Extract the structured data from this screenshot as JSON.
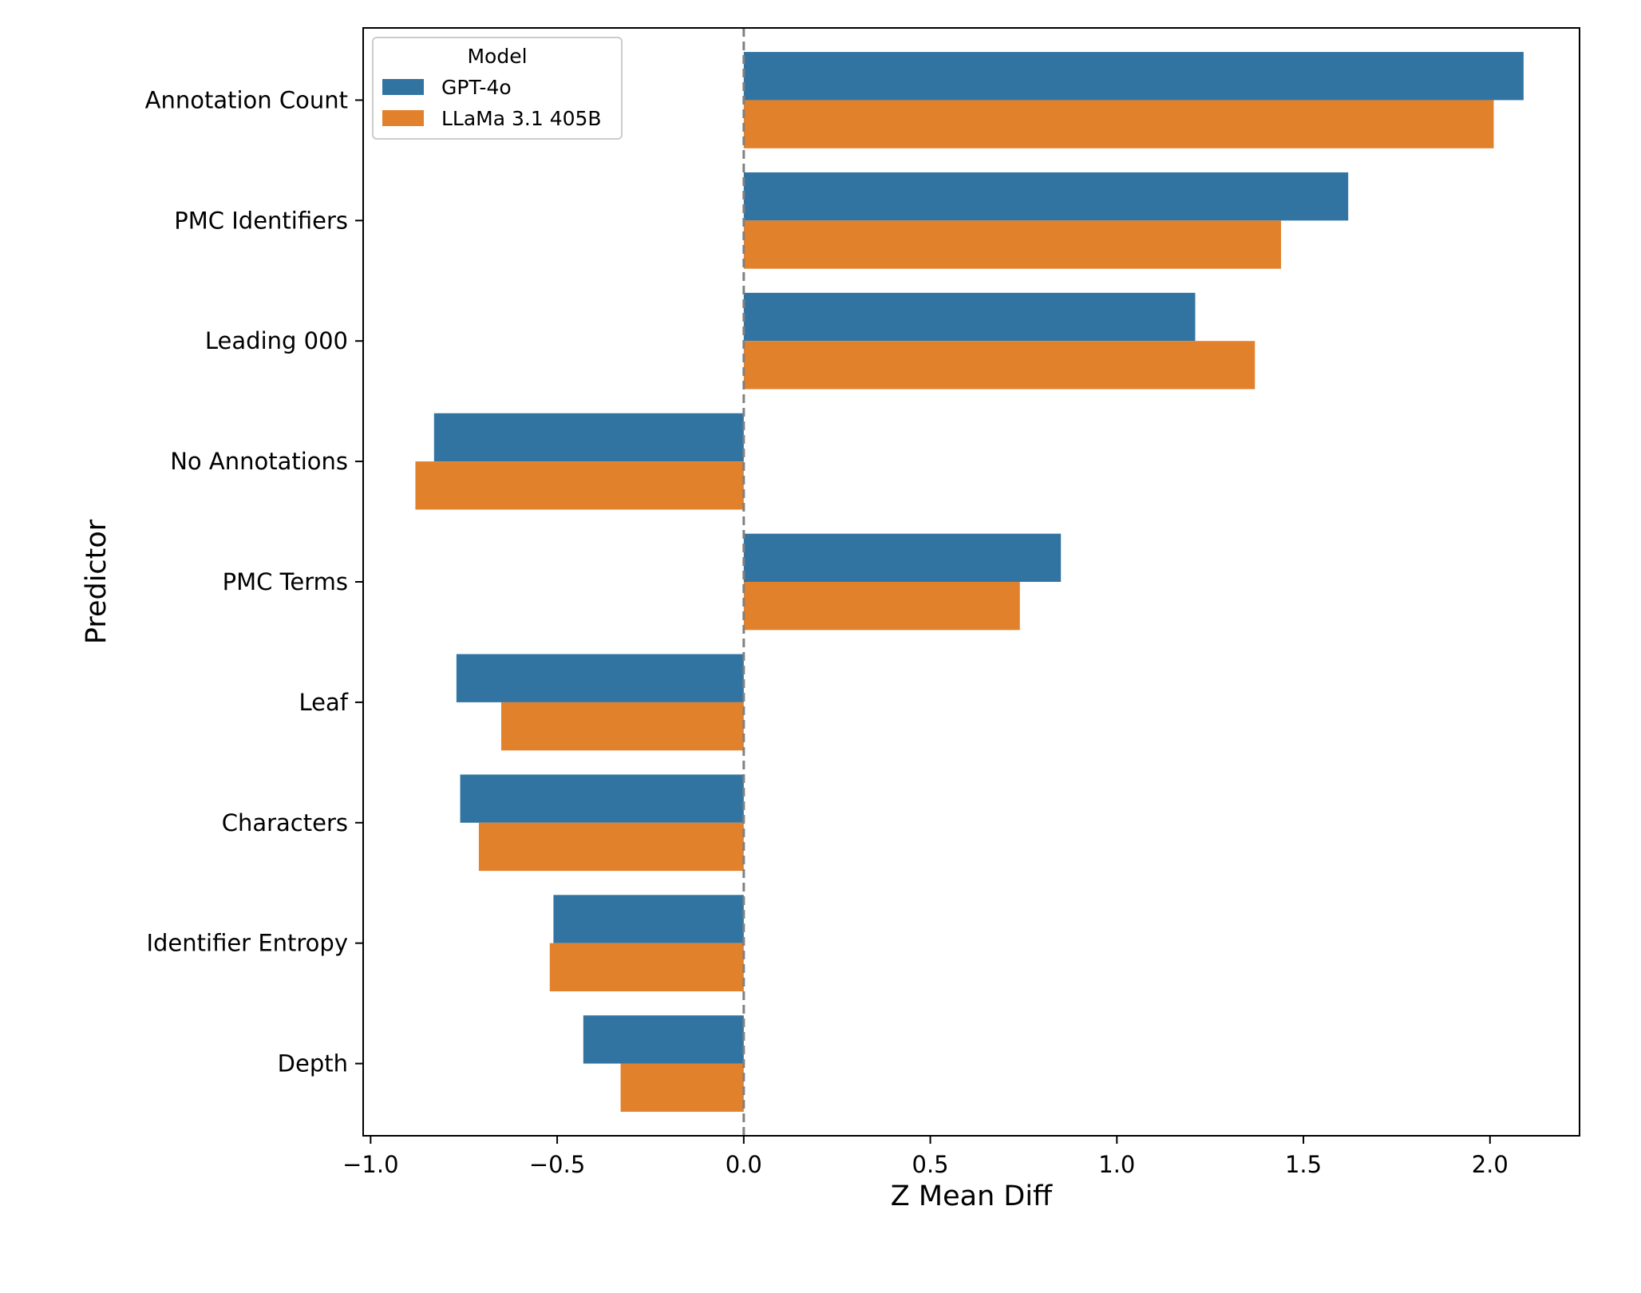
{
  "chart_data": {
    "type": "bar",
    "orientation": "horizontal",
    "categories": [
      "Annotation Count",
      "PMC Identifiers",
      "Leading 000",
      "No Annotations",
      "PMC Terms",
      "Leaf",
      "Characters",
      "Identifier Entropy",
      "Depth"
    ],
    "series": [
      {
        "name": "GPT-4o",
        "color": "#3274a1",
        "values": [
          2.09,
          1.62,
          1.21,
          -0.83,
          0.85,
          -0.77,
          -0.76,
          -0.51,
          -0.43
        ]
      },
      {
        "name": "LLaMa 3.1 405B",
        "color": "#e1812c",
        "values": [
          2.01,
          1.44,
          1.37,
          -0.88,
          0.74,
          -0.65,
          -0.71,
          -0.52,
          -0.33
        ]
      }
    ],
    "xlabel": "Z Mean Diff",
    "ylabel": "Predictor",
    "xlim": [
      -1.02,
      2.24
    ],
    "xticks": [
      -1.0,
      -0.5,
      0.0,
      0.5,
      1.0,
      1.5,
      2.0
    ],
    "xtick_labels": [
      "−1.0",
      "−0.5",
      "0.0",
      "0.5",
      "1.0",
      "1.5",
      "2.0"
    ],
    "reference_line": 0.0,
    "legend": {
      "title": "Model",
      "placement": "top-left"
    },
    "grid": false
  }
}
